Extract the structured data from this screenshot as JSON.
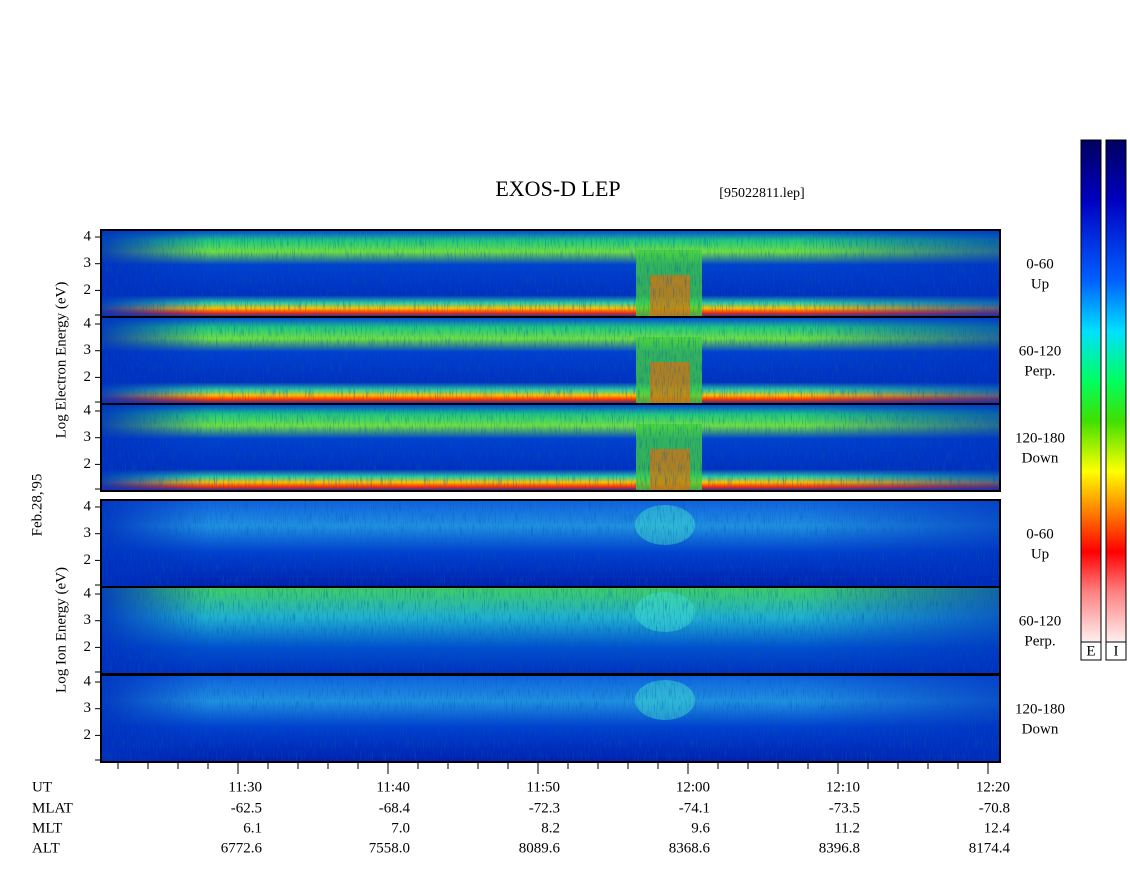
{
  "title": "EXOS-D LEP",
  "file": "[95022811.lep]",
  "date": "Feb.28,'95",
  "electron_axis_label": "Log Electron Energy (eV)",
  "ion_axis_label": "Log Ion Energy (eV)",
  "energy_ticks": [
    "4",
    "3",
    "2"
  ],
  "panels": [
    {
      "range": "0-60",
      "direction": "Up"
    },
    {
      "range": "60-120",
      "direction": "Perp."
    },
    {
      "range": "120-180",
      "direction": "Down"
    },
    {
      "range": "0-60",
      "direction": "Up"
    },
    {
      "range": "60-120",
      "direction": "Perp."
    },
    {
      "range": "120-180",
      "direction": "Down"
    }
  ],
  "colorbar_labels": [
    "E",
    "I"
  ],
  "rows": [
    {
      "label": "UT",
      "values": [
        "11:30",
        "11:40",
        "11:50",
        "12:00",
        "12:10",
        "12:20"
      ]
    },
    {
      "label": "MLAT",
      "values": [
        "-62.5",
        "-68.4",
        "-72.3",
        "-74.1",
        "-73.5",
        "-70.8"
      ]
    },
    {
      "label": "MLT",
      "values": [
        "6.1",
        "7.0",
        "8.2",
        "9.6",
        "11.2",
        "12.4"
      ]
    },
    {
      "label": "ALT",
      "values": [
        "6772.6",
        "7558.0",
        "8089.6",
        "8368.6",
        "8396.8",
        "8174.4"
      ]
    }
  ]
}
